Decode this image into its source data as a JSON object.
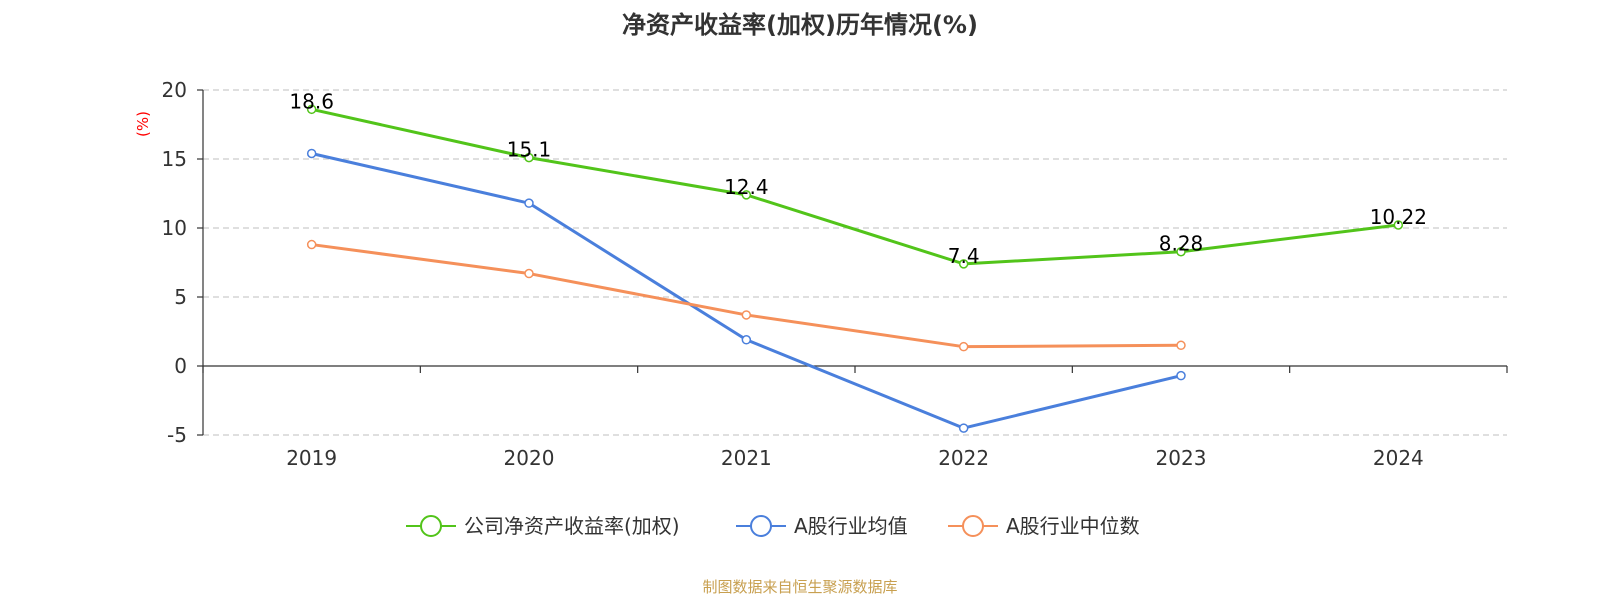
{
  "chart_data": {
    "type": "line",
    "title": "净资产收益率(加权)历年情况(%)",
    "ylabel": "(%)",
    "xlabel": "",
    "categories": [
      "2019",
      "2020",
      "2021",
      "2022",
      "2023",
      "2024"
    ],
    "ylim": [
      -5,
      20
    ],
    "yticks": [
      20,
      15,
      10,
      5,
      0,
      -5
    ],
    "grid": true,
    "legend_position": "bottom-center",
    "series": [
      {
        "name": "公司净资产收益率(加权)",
        "values": [
          18.6,
          15.1,
          12.4,
          7.4,
          8.28,
          10.22
        ],
        "labels": [
          "18.6",
          "15.1",
          "12.4",
          "7.4",
          "8.28",
          "10.22"
        ],
        "color": "#52c41a",
        "show_labels": true
      },
      {
        "name": "A股行业均值",
        "values": [
          15.4,
          11.8,
          1.9,
          -4.5,
          -0.7,
          null
        ],
        "color": "#4a7fdc",
        "show_labels": false
      },
      {
        "name": "A股行业中位数",
        "values": [
          8.8,
          6.7,
          3.7,
          1.4,
          1.5,
          null
        ],
        "color": "#f5905a",
        "show_labels": false
      }
    ],
    "source": "制图数据来自恒生聚源数据库",
    "source_color": "#c8a050",
    "ylabel_color": "#ff0000"
  }
}
